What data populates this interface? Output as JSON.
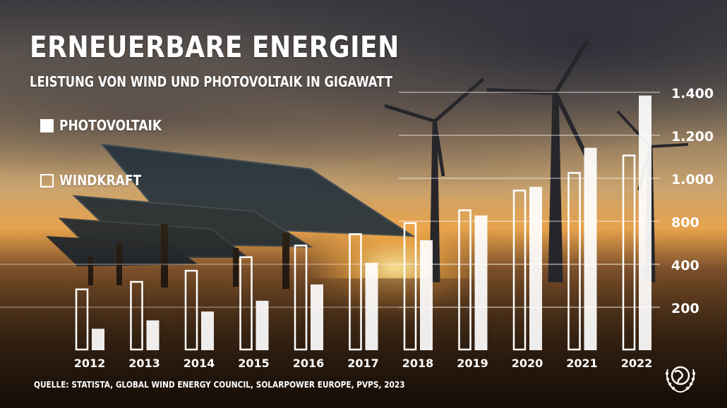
{
  "title": "ERNEUERBARE ENERGIEN",
  "subtitle": "LEISTUNG VON WIND UND PHOTOVOLTAIK IN GIGAWATT",
  "legend": {
    "photovoltaik": "PHOTOVOLTAIK",
    "windkraft": "WINDKRAFT"
  },
  "source": "QUELLE: STATISTA, GLOBAL WIND ENERGY COUNCIL, SOLARPOWER EUROPE, PVPS, 2023",
  "colors": {
    "bars": "#ffffff",
    "gridlines": "#ffffff"
  },
  "icons": {
    "logo": "globe-wreath-emblem"
  },
  "chart_data": {
    "type": "bar",
    "categories": [
      "2012",
      "2013",
      "2014",
      "2015",
      "2016",
      "2017",
      "2018",
      "2019",
      "2020",
      "2021",
      "2022"
    ],
    "series": [
      {
        "name": "WINDKRAFT",
        "style": "outline",
        "values": [
          283,
          318,
          370,
          433,
          487,
          540,
          591,
          651,
          743,
          825,
          906
        ]
      },
      {
        "name": "PHOTOVOLTAIK",
        "style": "solid",
        "values": [
          100,
          139,
          180,
          230,
          306,
          407,
          512,
          627,
          760,
          942,
          1185
        ]
      }
    ],
    "yticks": [
      200,
      400,
      800,
      1.0,
      1.2,
      1.4
    ],
    "ytick_labels": [
      "200",
      "400",
      "800",
      "1.000",
      "1.200",
      "1.400"
    ],
    "ylim": [
      0,
      1400
    ],
    "axis_position": "right",
    "grid": true,
    "legend_position": "top-left"
  }
}
